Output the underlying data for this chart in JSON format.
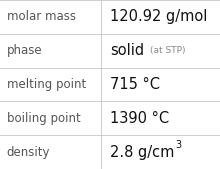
{
  "rows": [
    {
      "label": "molar mass",
      "value": "120.92 g/mol",
      "value_suffix": null,
      "superscript": null
    },
    {
      "label": "phase",
      "value": "solid",
      "value_suffix": "(at STP)",
      "superscript": null
    },
    {
      "label": "melting point",
      "value": "715 °C",
      "value_suffix": null,
      "superscript": null
    },
    {
      "label": "boiling point",
      "value": "1390 °C",
      "value_suffix": null,
      "superscript": null
    },
    {
      "label": "density",
      "value": "2.8 g/cm",
      "value_suffix": null,
      "superscript": "3"
    }
  ],
  "col_split": 0.46,
  "background_color": "#ffffff",
  "line_color": "#bbbbbb",
  "label_color": "#555555",
  "value_color": "#111111",
  "suffix_color": "#888888",
  "label_fontsize": 8.5,
  "value_fontsize": 10.5,
  "suffix_fontsize": 6.5,
  "super_fontsize": 7.0
}
